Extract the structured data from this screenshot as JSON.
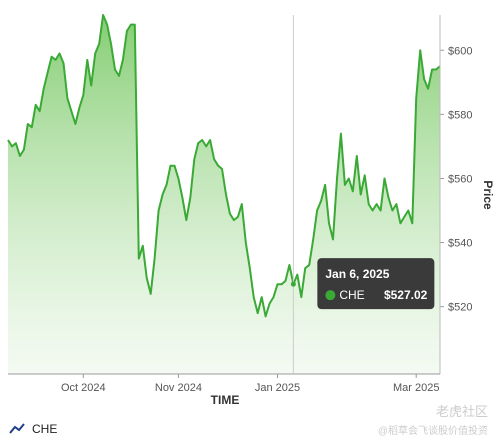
{
  "chart_data": {
    "type": "area",
    "x_label": "TIME",
    "y_label": "Price",
    "categories": [
      null,
      null,
      null,
      null,
      null,
      null,
      null,
      null,
      null,
      null,
      null,
      null,
      null,
      null,
      null,
      null,
      null,
      null,
      null,
      "Oct 2024",
      null,
      null,
      null,
      null,
      null,
      null,
      null,
      null,
      null,
      null,
      null,
      null,
      null,
      null,
      null,
      null,
      null,
      null,
      null,
      null,
      null,
      null,
      null,
      "Nov 2024",
      null,
      null,
      null,
      null,
      null,
      null,
      null,
      null,
      null,
      null,
      null,
      null,
      null,
      null,
      null,
      null,
      null,
      null,
      null,
      null,
      null,
      null,
      null,
      null,
      "Jan 2025",
      null,
      null,
      null,
      null,
      null,
      null,
      null,
      null,
      null,
      null,
      null,
      null,
      null,
      null,
      null,
      null,
      null,
      null,
      null,
      null,
      null,
      null,
      null,
      null,
      null,
      null,
      null,
      null,
      null,
      null,
      null,
      null,
      null,
      null,
      "Mar 2025",
      null,
      null,
      null,
      null,
      null,
      null
    ],
    "series": [
      {
        "name": "CHE",
        "color": "#3aa935",
        "values": [
          572,
          570,
          571,
          567,
          569,
          577,
          576,
          583,
          581,
          588,
          593,
          598,
          597,
          599,
          596,
          585,
          581,
          577,
          582,
          586,
          597,
          589,
          599,
          602,
          611,
          608,
          602,
          594,
          592,
          597,
          606,
          608,
          608,
          535,
          539,
          529,
          524,
          535,
          550,
          555,
          558,
          564,
          564,
          560,
          554,
          547,
          554,
          566,
          571,
          572,
          570,
          572,
          566,
          564,
          563,
          555,
          549,
          547,
          548,
          552,
          540,
          532,
          523,
          518,
          523,
          517,
          521,
          523,
          527,
          527,
          528,
          533,
          527.02,
          530,
          523,
          532,
          533,
          541,
          550,
          553,
          558,
          546,
          541,
          560,
          574,
          558,
          560,
          556,
          567,
          555,
          561,
          552,
          550,
          552,
          550,
          560,
          554,
          550,
          552,
          546,
          548,
          550,
          546,
          585,
          600,
          591,
          588,
          594,
          594,
          595
        ],
        "value_labels": [
          null,
          null,
          null,
          null,
          null,
          null,
          null,
          null,
          null,
          null,
          null,
          null,
          null,
          null,
          null,
          null,
          null,
          null,
          null,
          null,
          null,
          null,
          null,
          null,
          null,
          null,
          null,
          null,
          null,
          null,
          null,
          null,
          null,
          null,
          null,
          null,
          null,
          null,
          null,
          null,
          null,
          null,
          null,
          null,
          null,
          null,
          null,
          null,
          null,
          null,
          null,
          null,
          null,
          null,
          null,
          null,
          null,
          null,
          null,
          null,
          null,
          null,
          null,
          null,
          null,
          null,
          null,
          null,
          null,
          null,
          null,
          null,
          "$527.02",
          null,
          null,
          null,
          null,
          null,
          null,
          null,
          null,
          null,
          null,
          null,
          null,
          null,
          null,
          null,
          null,
          null,
          null,
          null,
          null,
          null,
          null,
          null,
          null,
          null,
          null,
          null,
          null,
          null,
          null,
          null,
          null,
          null,
          null,
          null,
          null,
          null
        ]
      }
    ],
    "tooltip_title": "Jan 6, 2025",
    "ylim": [
      499,
      611
    ],
    "yticks": [
      {
        "value": 520,
        "label": "$520"
      },
      {
        "value": 540,
        "label": "$540"
      },
      {
        "value": 560,
        "label": "$560"
      },
      {
        "value": 580,
        "label": "$580"
      },
      {
        "value": 600,
        "label": "$600"
      }
    ],
    "grid": false,
    "legend": "bottom-left",
    "watermark": "老虎社区",
    "credit": "@稻草会飞谈股价值投资"
  }
}
